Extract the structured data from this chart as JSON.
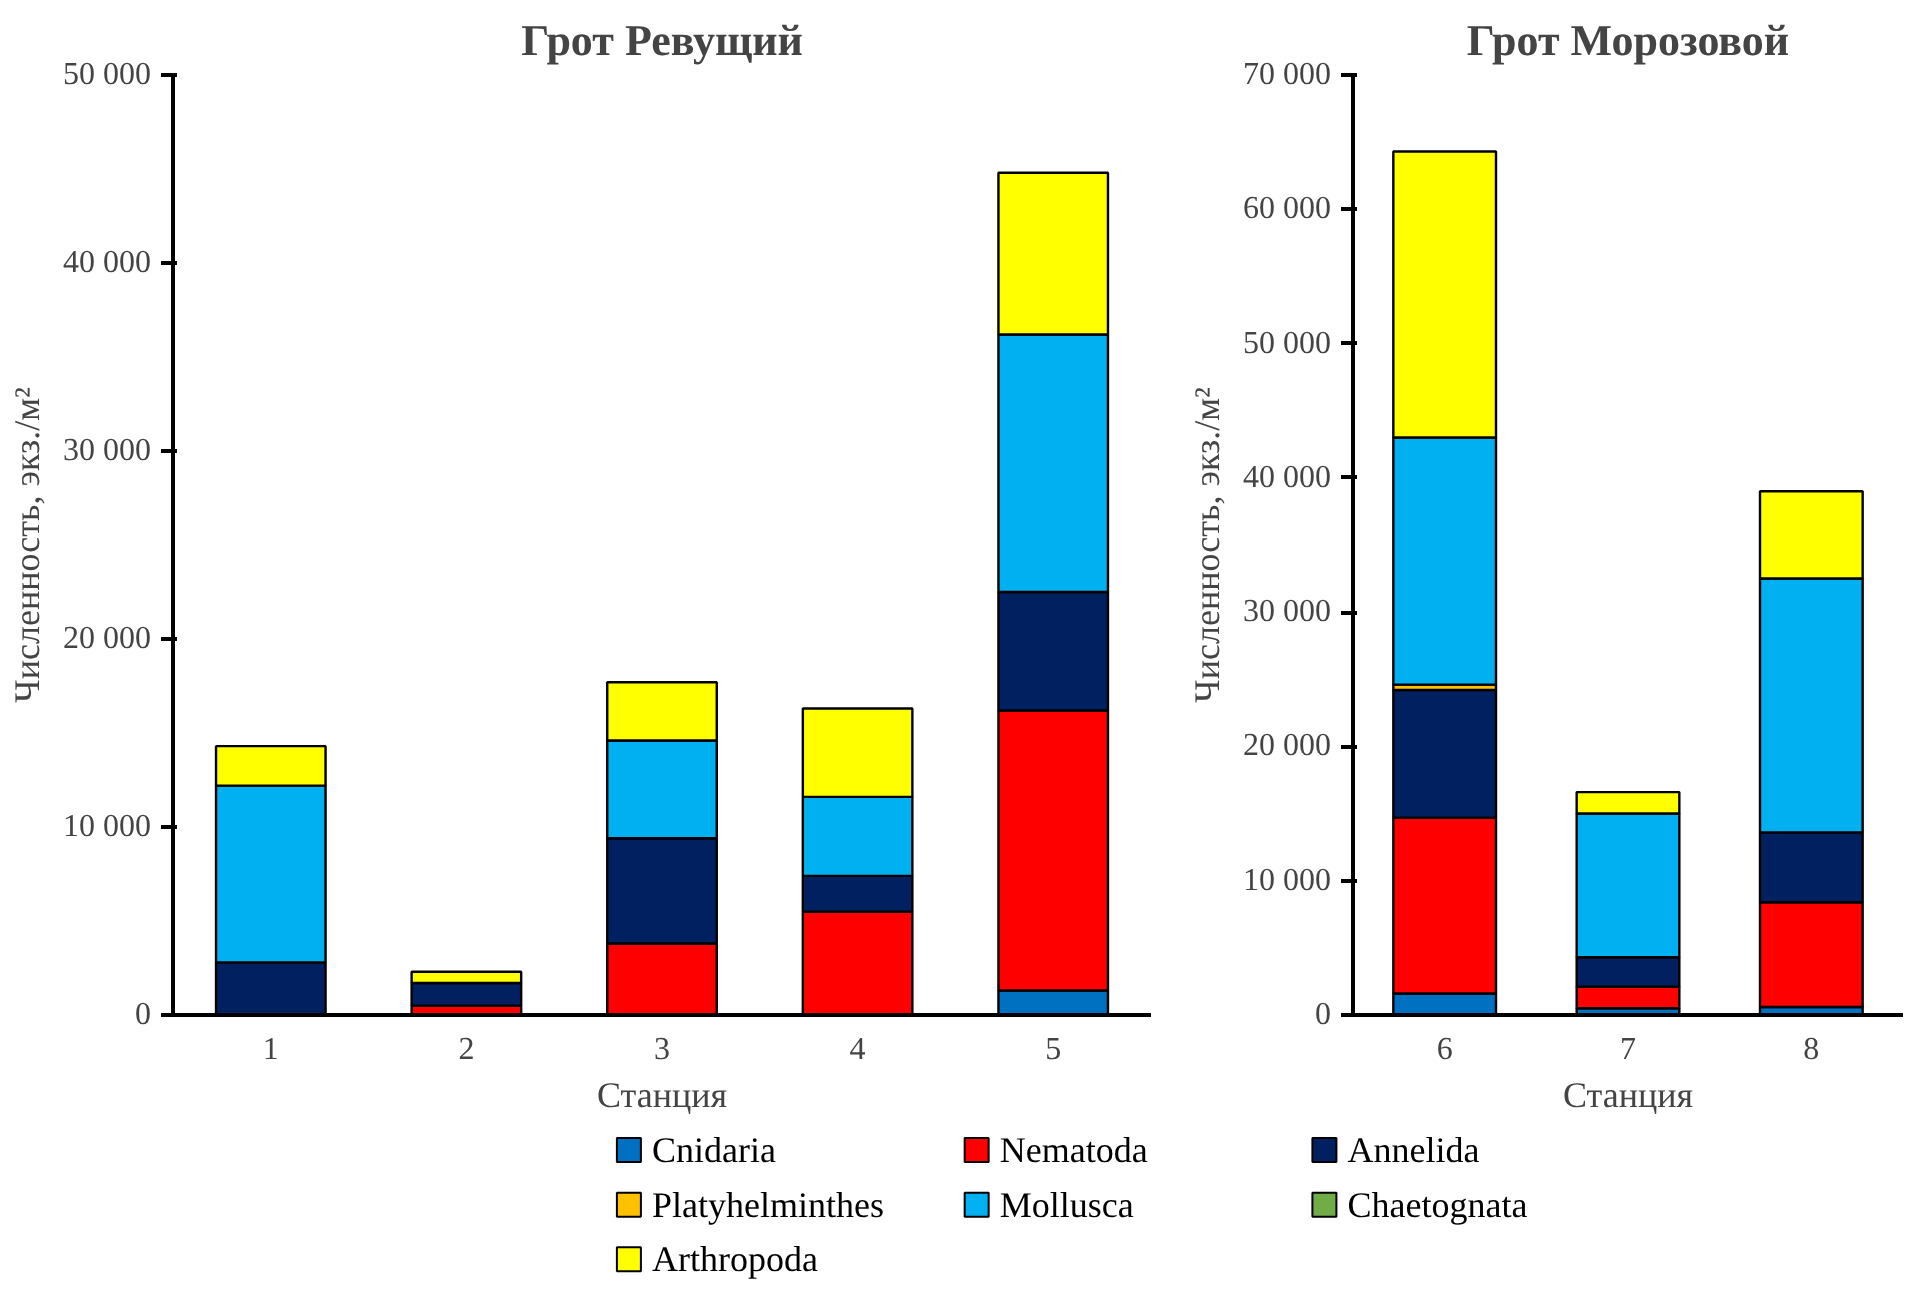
{
  "chart_data": [
    {
      "type": "bar",
      "title": "Грот Ревущий",
      "xlabel": "Станция",
      "ylabel": "Численность, экз./м²",
      "stacked": true,
      "legend": "bottom",
      "categories": [
        "1",
        "2",
        "3",
        "4",
        "5"
      ],
      "ylim": [
        0,
        50000
      ],
      "yticks": [
        0,
        {
          "value": 10000,
          "label": "10 000"
        },
        {
          "value": 20000,
          "label": "20 000"
        },
        {
          "value": 30000,
          "label": "30 000"
        },
        {
          "value": 40000,
          "label": "40 000"
        },
        {
          "value": 50000,
          "label": "50 000"
        }
      ],
      "series": [
        {
          "name": "Cnidaria",
          "color": "#0070c0",
          "values": [
            null,
            null,
            null,
            null,
            1300
          ]
        },
        {
          "name": "Nematoda",
          "color": "#ff0000",
          "values": [
            null,
            500,
            3800,
            5500,
            14900
          ]
        },
        {
          "name": "Annelida",
          "color": "#002060",
          "values": [
            2800,
            1200,
            5600,
            1900,
            6300
          ]
        },
        {
          "name": "Platyhelminthes",
          "color": "#ffc000",
          "values": [
            null,
            null,
            null,
            null,
            null
          ]
        },
        {
          "name": "Mollusca",
          "color": "#00b0f0",
          "values": [
            9400,
            null,
            5200,
            4200,
            13700
          ]
        },
        {
          "name": "Chaetognata",
          "color": "#70ad47",
          "values": [
            null,
            null,
            null,
            null,
            null
          ]
        },
        {
          "name": "Arthropoda",
          "color": "#ffff00",
          "values": [
            2100,
            600,
            3100,
            4700,
            8600
          ]
        }
      ]
    },
    {
      "type": "bar",
      "title": "Грот Морозовой",
      "xlabel": "Станция",
      "ylabel": "Численность, экз./м²",
      "stacked": true,
      "categories": [
        "6",
        "7",
        "8"
      ],
      "ylim": [
        0,
        70000
      ],
      "yticks": [
        0,
        {
          "value": 10000,
          "label": "10 000"
        },
        {
          "value": 20000,
          "label": "20 000"
        },
        {
          "value": 30000,
          "label": "30 000"
        },
        {
          "value": 40000,
          "label": "40 000"
        },
        {
          "value": 50000,
          "label": "50 000"
        },
        {
          "value": 60000,
          "label": "60 000"
        },
        {
          "value": 70000,
          "label": "70 000"
        }
      ],
      "series": [
        {
          "color": "#0070c0",
          "values": [
            1600,
            500,
            600
          ]
        },
        {
          "color": "#ff0000",
          "values": [
            13100,
            1600,
            7800
          ]
        },
        {
          "color": "#002060",
          "values": [
            9500,
            2200,
            5200
          ]
        },
        {
          "color": "#ffc000",
          "values": [
            400,
            null,
            null
          ]
        },
        {
          "color": "#00b0f0",
          "values": [
            18400,
            10700,
            18900
          ]
        },
        {
          "color": "#ffff00",
          "values": [
            21300,
            1600,
            6500
          ]
        }
      ]
    }
  ]
}
